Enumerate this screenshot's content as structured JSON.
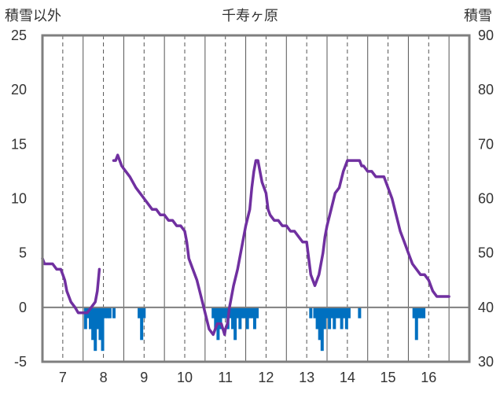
{
  "chart_data": {
    "type": "bar+line",
    "title": "千寿ヶ原",
    "left_axis_label": "積雪以外",
    "right_axis_label": "積雪",
    "left_ylim": [
      -5,
      25
    ],
    "right_ylim": [
      30,
      90
    ],
    "left_yticks": [
      -5,
      0,
      5,
      10,
      15,
      20,
      25
    ],
    "right_yticks": [
      30,
      40,
      50,
      60,
      70,
      80,
      90
    ],
    "xlim": [
      6.5,
      17.0
    ],
    "xticks": [
      7,
      8,
      9,
      10,
      11,
      12,
      13,
      14,
      15,
      16
    ],
    "grid": "vertical lines at day boundaries and dashed mid-day lines",
    "colors": {
      "bars": "#0070c0",
      "line": "#7030a0",
      "zero_line": "#7f7f7f",
      "frame": "#7f7f7f"
    },
    "bars": {
      "name": "",
      "axis": "left",
      "x": [
        7.56,
        7.62,
        7.68,
        7.74,
        7.8,
        7.86,
        7.92,
        7.98,
        8.04,
        8.1,
        8.16,
        8.26,
        8.88,
        8.94,
        9.0,
        10.7,
        10.76,
        10.82,
        10.88,
        10.94,
        11.0,
        11.06,
        11.12,
        11.18,
        11.24,
        11.3,
        11.36,
        11.42,
        11.48,
        11.54,
        11.6,
        11.66,
        11.72,
        11.78,
        13.1,
        13.2,
        13.26,
        13.32,
        13.38,
        13.44,
        13.5,
        13.56,
        13.62,
        13.68,
        13.74,
        13.8,
        13.86,
        13.92,
        13.98,
        14.04,
        14.3,
        15.64,
        15.7,
        15.76,
        15.82,
        15.88
      ],
      "values": [
        -2,
        -1,
        -2,
        -3,
        -4,
        -2,
        -3,
        -4,
        -1,
        -1,
        -1,
        -1,
        -1,
        -3,
        -1,
        -1,
        -2,
        -3,
        -2,
        -1,
        -1,
        -2,
        -1,
        -2,
        -3,
        -1,
        -2,
        -1,
        -1,
        -2,
        -1,
        -1,
        -2,
        -1,
        -1,
        -1,
        -2,
        -3,
        -4,
        -2,
        -1,
        -2,
        -1,
        -2,
        -1,
        -1,
        -2,
        -1,
        -2,
        -1,
        -1,
        -1,
        -3,
        -1,
        -1,
        -1
      ]
    },
    "line_segments": [
      {
        "axis": "right",
        "points": [
          [
            6.5,
            49
          ],
          [
            6.55,
            48
          ],
          [
            6.65,
            48
          ],
          [
            6.75,
            48
          ],
          [
            6.85,
            47
          ],
          [
            6.95,
            47
          ],
          [
            7.0,
            46
          ],
          [
            7.05,
            45
          ],
          [
            7.1,
            43
          ],
          [
            7.2,
            41
          ],
          [
            7.3,
            40
          ],
          [
            7.38,
            39
          ],
          [
            7.5,
            39
          ],
          [
            7.6,
            39
          ],
          [
            7.7,
            40
          ],
          [
            7.8,
            41
          ],
          [
            7.85,
            43
          ],
          [
            7.9,
            47
          ]
        ]
      },
      {
        "axis": "right",
        "points": [
          [
            8.25,
            67
          ],
          [
            8.3,
            67
          ],
          [
            8.35,
            68
          ],
          [
            8.4,
            67
          ],
          [
            8.45,
            66
          ],
          [
            8.55,
            65
          ],
          [
            8.65,
            64
          ],
          [
            8.8,
            62
          ],
          [
            8.9,
            61
          ],
          [
            9.0,
            60
          ],
          [
            9.1,
            59
          ],
          [
            9.2,
            58
          ],
          [
            9.3,
            58
          ],
          [
            9.4,
            57
          ],
          [
            9.5,
            57
          ],
          [
            9.6,
            56
          ],
          [
            9.7,
            56
          ],
          [
            9.8,
            55
          ],
          [
            9.9,
            55
          ],
          [
            10.0,
            54
          ],
          [
            10.05,
            52
          ],
          [
            10.1,
            49
          ],
          [
            10.2,
            47
          ],
          [
            10.3,
            45
          ],
          [
            10.4,
            42
          ],
          [
            10.5,
            39
          ],
          [
            10.6,
            36
          ],
          [
            10.7,
            35
          ],
          [
            10.75,
            36
          ],
          [
            10.8,
            37
          ],
          [
            10.9,
            37
          ],
          [
            10.98,
            35
          ],
          [
            11.0,
            36
          ],
          [
            11.05,
            37
          ],
          [
            11.1,
            40
          ],
          [
            11.2,
            44
          ],
          [
            11.3,
            47
          ],
          [
            11.4,
            51
          ],
          [
            11.5,
            55
          ],
          [
            11.6,
            58
          ],
          [
            11.65,
            62
          ],
          [
            11.7,
            65
          ],
          [
            11.75,
            67
          ],
          [
            11.8,
            67
          ],
          [
            11.85,
            65
          ],
          [
            11.9,
            63
          ],
          [
            12.0,
            61
          ],
          [
            12.05,
            58
          ],
          [
            12.1,
            57
          ],
          [
            12.2,
            56
          ],
          [
            12.3,
            56
          ],
          [
            12.4,
            55
          ],
          [
            12.5,
            55
          ],
          [
            12.6,
            54
          ],
          [
            12.7,
            54
          ],
          [
            12.8,
            53
          ],
          [
            12.9,
            52
          ],
          [
            13.0,
            52
          ],
          [
            13.05,
            49
          ],
          [
            13.1,
            46
          ],
          [
            13.2,
            44
          ],
          [
            13.3,
            46
          ],
          [
            13.4,
            50
          ],
          [
            13.45,
            53
          ],
          [
            13.5,
            55
          ],
          [
            13.6,
            58
          ],
          [
            13.7,
            61
          ],
          [
            13.8,
            62
          ],
          [
            13.9,
            65
          ],
          [
            14.0,
            67
          ],
          [
            14.1,
            67
          ],
          [
            14.2,
            67
          ],
          [
            14.3,
            67
          ],
          [
            14.35,
            66
          ],
          [
            14.4,
            66
          ],
          [
            14.5,
            65
          ],
          [
            14.6,
            65
          ],
          [
            14.7,
            64
          ],
          [
            14.8,
            64
          ],
          [
            14.9,
            64
          ],
          [
            15.0,
            62
          ],
          [
            15.1,
            60
          ],
          [
            15.2,
            57
          ],
          [
            15.3,
            54
          ],
          [
            15.4,
            52
          ],
          [
            15.5,
            50
          ],
          [
            15.6,
            48
          ],
          [
            15.7,
            47
          ],
          [
            15.8,
            46
          ],
          [
            15.9,
            46
          ],
          [
            16.0,
            45
          ],
          [
            16.05,
            44
          ],
          [
            16.1,
            43
          ],
          [
            16.2,
            42
          ],
          [
            16.3,
            42
          ],
          [
            16.5,
            42
          ]
        ]
      }
    ]
  }
}
